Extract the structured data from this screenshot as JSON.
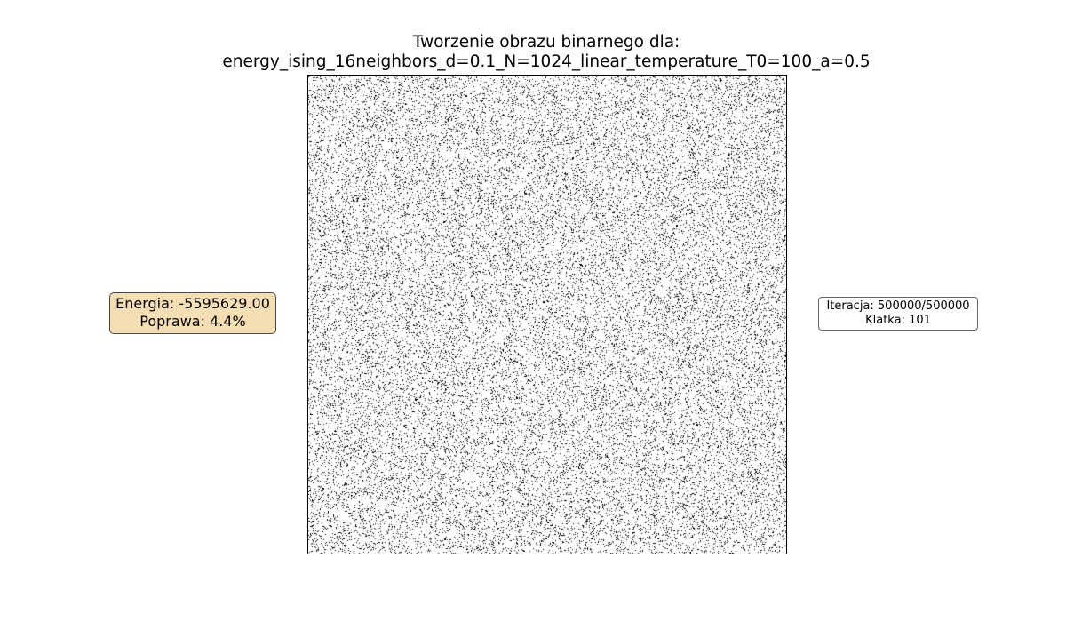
{
  "title": {
    "line1": "Tworzenie obrazu binarnego dla:",
    "line2": "energy_ising_16neighbors_d=0.1_N=1024_linear_temperature_T0=100_a=0.5"
  },
  "energy_box": {
    "energy_text": "Energia: -5595629.00",
    "improvement_text": "Poprawa: 4.4%"
  },
  "iteration_box": {
    "iteration_text": "Iteracja: 500000/500000",
    "frame_text": "Klatka: 101"
  },
  "image": {
    "grid_size": 1024,
    "black_fraction": 0.1,
    "colors": {
      "on": "#000000",
      "off": "#ffffff"
    }
  },
  "colors": {
    "energy_box_fill": "#f5deb3",
    "energy_box_border": "#4a4a4a",
    "iteration_box_border": "#666666"
  }
}
